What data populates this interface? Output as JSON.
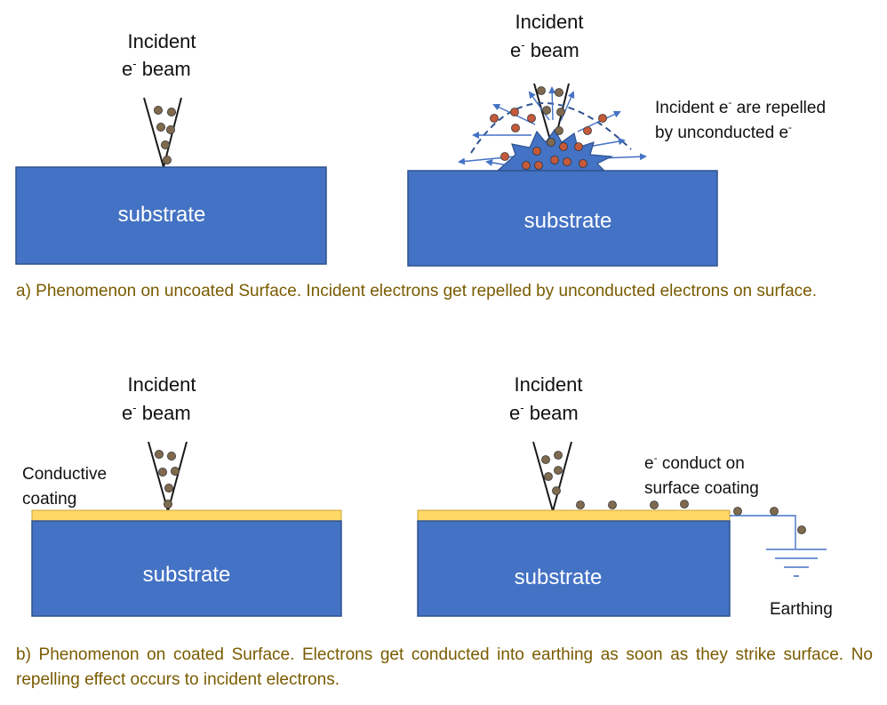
{
  "colors": {
    "substrate": "#4472c4",
    "substrate_border": "#2f528f",
    "coating": "#ffd966",
    "coating_border": "#c9a23a",
    "electron_gray": "#7f6a4f",
    "electron_orange": "#c55a3a",
    "arrow": "#4472c4",
    "caption": "#7a5b00"
  },
  "panel_a": {
    "left": {
      "beam_label_line1": "Incident",
      "beam_label_e": "e",
      "beam_label_sup": "-",
      "beam_label_rest": " beam",
      "substrate_label": "substrate"
    },
    "right": {
      "beam_label_line1": "Incident",
      "beam_label_e": "e",
      "beam_label_sup": "-",
      "beam_label_rest": " beam",
      "note_line1_a": "Incident e",
      "note_line1_sup": "-",
      "note_line1_b": " are repelled",
      "note_line2_a": "by unconducted e",
      "note_line2_sup": "-",
      "substrate_label": "substrate"
    },
    "caption": "a) Phenomenon on uncoated Surface. Incident electrons  get repelled by unconducted electrons on surface."
  },
  "panel_b": {
    "left": {
      "beam_label_line1": "Incident",
      "beam_label_e": "e",
      "beam_label_sup": "-",
      "beam_label_rest": " beam",
      "coating_label_line1": "Conductive",
      "coating_label_line2": "coating",
      "substrate_label": "substrate"
    },
    "right": {
      "beam_label_line1": "Incident",
      "beam_label_e": "e",
      "beam_label_sup": "-",
      "beam_label_rest": " beam",
      "note_line1_a": "e",
      "note_line1_sup": "-",
      "note_line1_b": " conduct on",
      "note_line2": "surface coating",
      "earthing_label": "Earthing",
      "substrate_label": "substrate"
    },
    "caption": "b) Phenomenon on coated Surface. Electrons get conducted into earthing as soon as they strike surface. No repelling effect occurs to incident electrons."
  }
}
